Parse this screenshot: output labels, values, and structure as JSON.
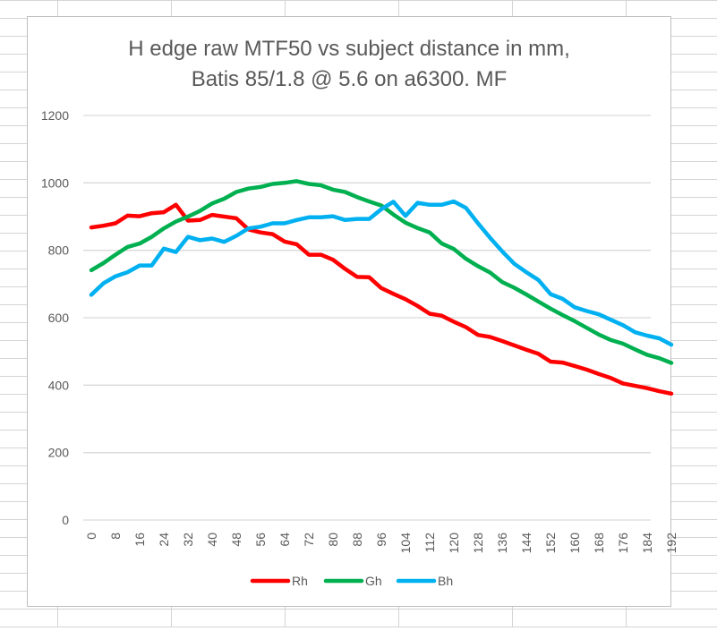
{
  "chart_data": {
    "type": "line",
    "title_lines": [
      "H edge raw MTF50 vs subject distance in mm,",
      "Batis 85/1.8 @ 5.6 on a6300. MF"
    ],
    "xlabel": "",
    "ylabel": "",
    "ylim": [
      0,
      1200
    ],
    "yticks": [
      0,
      200,
      400,
      600,
      800,
      1000,
      1200
    ],
    "x": [
      0,
      4,
      8,
      12,
      16,
      20,
      24,
      28,
      32,
      36,
      40,
      44,
      48,
      52,
      56,
      60,
      64,
      68,
      72,
      76,
      80,
      84,
      88,
      92,
      96,
      100,
      104,
      108,
      112,
      116,
      120,
      124,
      128,
      132,
      136,
      140,
      144,
      148,
      152,
      156,
      160,
      164,
      168,
      172,
      176,
      180,
      184,
      188,
      192
    ],
    "xtick_labels": [
      "0",
      "8",
      "16",
      "24",
      "32",
      "40",
      "48",
      "56",
      "64",
      "72",
      "80",
      "88",
      "96",
      "104",
      "112",
      "120",
      "128",
      "136",
      "144",
      "152",
      "160",
      "168",
      "176",
      "184",
      "192"
    ],
    "grid": true,
    "legend_position": "bottom",
    "series": [
      {
        "name": "Rh",
        "color": "#ff0000",
        "values": [
          868,
          873,
          880,
          903,
          901,
          910,
          913,
          935,
          888,
          890,
          905,
          900,
          895,
          862,
          853,
          848,
          826,
          818,
          787,
          787,
          772,
          745,
          721,
          720,
          688,
          671,
          655,
          635,
          612,
          606,
          588,
          572,
          549,
          543,
          531,
          518,
          505,
          493,
          470,
          467,
          457,
          446,
          433,
          421,
          405,
          398,
          391,
          382,
          375
        ]
      },
      {
        "name": "Gh",
        "color": "#00b050",
        "values": [
          741,
          762,
          787,
          810,
          820,
          840,
          865,
          885,
          900,
          917,
          939,
          953,
          973,
          983,
          988,
          997,
          1000,
          1005,
          997,
          993,
          980,
          973,
          958,
          945,
          933,
          906,
          882,
          866,
          853,
          820,
          804,
          775,
          753,
          734,
          706,
          689,
          669,
          648,
          627,
          608,
          590,
          570,
          550,
          534,
          523,
          506,
          490,
          480,
          466
        ]
      },
      {
        "name": "Bh",
        "color": "#00b0f0",
        "values": [
          668,
          702,
          723,
          735,
          755,
          755,
          805,
          795,
          840,
          830,
          835,
          825,
          843,
          865,
          870,
          880,
          880,
          890,
          898,
          898,
          901,
          890,
          893,
          893,
          922,
          944,
          902,
          941,
          935,
          935,
          945,
          926,
          880,
          837,
          797,
          760,
          735,
          712,
          670,
          656,
          631,
          620,
          610,
          594,
          578,
          557,
          547,
          539,
          520
        ]
      }
    ]
  }
}
